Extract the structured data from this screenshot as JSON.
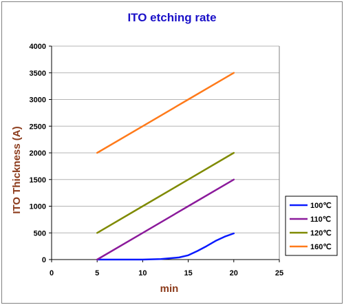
{
  "chart_data": {
    "type": "line",
    "title": "ITO etching rate",
    "xlabel": "min",
    "ylabel": "ITO Thickness (A)",
    "xlim": [
      0,
      25
    ],
    "ylim": [
      0,
      4000
    ],
    "x_ticks": [
      "0",
      "5",
      "10",
      "15",
      "20",
      "25"
    ],
    "y_ticks": [
      "0",
      "500",
      "1000",
      "1500",
      "2000",
      "2500",
      "3000",
      "3500",
      "4000"
    ],
    "grid": "horizontal",
    "legend_position": "right",
    "series": [
      {
        "name": "100℃",
        "color": "#0a1aff",
        "x": [
          5,
          6,
          10,
          12,
          14,
          15,
          16,
          17,
          18,
          19,
          20
        ],
        "y": [
          0,
          0,
          0,
          10,
          40,
          80,
          160,
          250,
          350,
          430,
          490
        ]
      },
      {
        "name": "110℃",
        "color": "#8b1a9b",
        "x": [
          5,
          10,
          15,
          20
        ],
        "y": [
          0,
          500,
          1000,
          1500
        ]
      },
      {
        "name": "120℃",
        "color": "#7f8a00",
        "x": [
          5,
          10,
          15,
          20
        ],
        "y": [
          500,
          1000,
          1500,
          2000
        ]
      },
      {
        "name": "160℃",
        "color": "#ff7a1a",
        "x": [
          5,
          10,
          15,
          20
        ],
        "y": [
          2000,
          2500,
          3000,
          3500
        ]
      }
    ]
  }
}
